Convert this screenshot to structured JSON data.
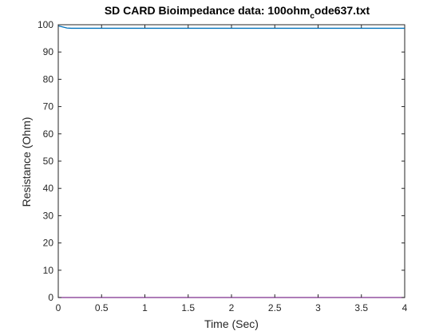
{
  "chart_data": {
    "type": "line",
    "title_main": "SD CARD Bioimpedance data: 100ohm",
    "title_sub": "c",
    "title_tail": "ode637.txt",
    "xlabel": "Time (Sec)",
    "ylabel": "Resistance (Ohm)",
    "xlim": [
      0,
      4
    ],
    "ylim": [
      0,
      100
    ],
    "xticks": [
      "0",
      "0.5",
      "1",
      "1.5",
      "2",
      "2.5",
      "3",
      "3.5",
      "4"
    ],
    "yticks": [
      "0",
      "10",
      "20",
      "30",
      "40",
      "50",
      "60",
      "70",
      "80",
      "90",
      "100"
    ],
    "grid": false,
    "legend": false,
    "series": [
      {
        "color": "#0072bd",
        "x": [
          0,
          0.05,
          0.1,
          0.15,
          0.2,
          0.5,
          1,
          1.5,
          2,
          2.5,
          3,
          3.5,
          4
        ],
        "y": [
          99.6,
          99.2,
          98.8,
          98.7,
          98.7,
          98.7,
          98.7,
          98.7,
          98.7,
          98.7,
          98.7,
          98.7,
          98.7
        ]
      },
      {
        "color": "#7e2f8e",
        "x": [
          0,
          4
        ],
        "y": [
          0,
          0
        ]
      }
    ]
  }
}
